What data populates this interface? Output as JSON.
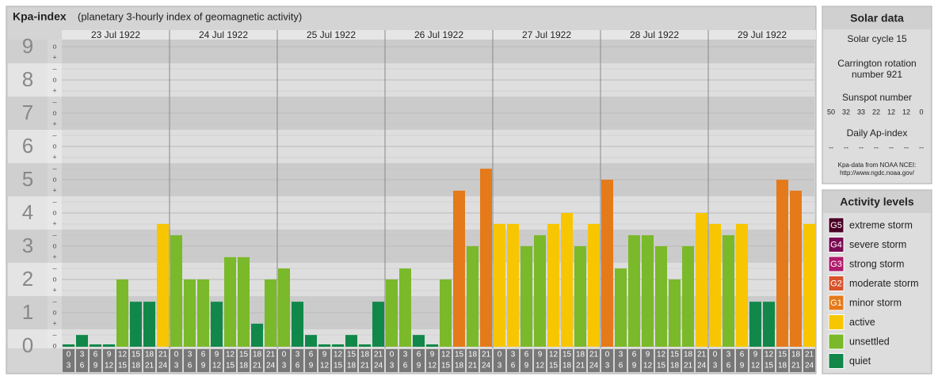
{
  "title": "Kpa-index",
  "subtitle": "(planetary 3-hourly index of geomagnetic activity)",
  "chart_data": {
    "type": "bar",
    "ylim": [
      0,
      9
    ],
    "yticks": [
      0,
      1,
      2,
      3,
      4,
      5,
      6,
      7,
      8,
      9
    ],
    "grid": true,
    "third_marks": [
      "–",
      "o",
      "+"
    ],
    "hours_from": [
      0,
      3,
      6,
      9,
      12,
      15,
      18,
      21
    ],
    "hours_to": [
      3,
      6,
      9,
      12,
      15,
      18,
      21,
      24
    ],
    "days": [
      {
        "date": "23 Jul 1922",
        "values": [
          0,
          0.33,
          0,
          0,
          2,
          1.33,
          1.33,
          3.67
        ],
        "colors": [
          "#11884a",
          "#11884a",
          "#11884a",
          "#11884a",
          "#7ab929",
          "#11884a",
          "#11884a",
          "#f7c600"
        ]
      },
      {
        "date": "24 Jul 1922",
        "values": [
          3.33,
          2,
          2,
          1.33,
          2.67,
          2.67,
          0.67,
          2
        ],
        "colors": [
          "#7ab929",
          "#7ab929",
          "#7ab929",
          "#11884a",
          "#7ab929",
          "#7ab929",
          "#11884a",
          "#7ab929"
        ]
      },
      {
        "date": "25 Jul 1922",
        "values": [
          2.33,
          1.33,
          0.33,
          0,
          0,
          0.33,
          0,
          1.33
        ],
        "colors": [
          "#7ab929",
          "#11884a",
          "#11884a",
          "#11884a",
          "#11884a",
          "#11884a",
          "#11884a",
          "#11884a"
        ]
      },
      {
        "date": "26 Jul 1922",
        "values": [
          2,
          2.33,
          0.33,
          0,
          2,
          4.67,
          3,
          5.33
        ],
        "colors": [
          "#7ab929",
          "#7ab929",
          "#11884a",
          "#11884a",
          "#7ab929",
          "#e57a1a",
          "#7ab929",
          "#e57a1a"
        ]
      },
      {
        "date": "27 Jul 1922",
        "values": [
          3.67,
          3.67,
          3,
          3.33,
          3.67,
          4,
          3,
          3.67
        ],
        "colors": [
          "#f7c600",
          "#f7c600",
          "#7ab929",
          "#7ab929",
          "#f7c600",
          "#f7c600",
          "#7ab929",
          "#f7c600"
        ]
      },
      {
        "date": "28 Jul 1922",
        "values": [
          5,
          2.33,
          3.33,
          3.33,
          3,
          2,
          3,
          4
        ],
        "colors": [
          "#e57a1a",
          "#7ab929",
          "#7ab929",
          "#7ab929",
          "#7ab929",
          "#7ab929",
          "#7ab929",
          "#f7c600"
        ]
      },
      {
        "date": "29 Jul 1922",
        "values": [
          3.67,
          3.33,
          3.67,
          1.33,
          1.33,
          5,
          4.67,
          3.67
        ],
        "colors": [
          "#f7c600",
          "#7ab929",
          "#f7c600",
          "#11884a",
          "#11884a",
          "#e57a1a",
          "#e57a1a",
          "#f7c600"
        ]
      }
    ]
  },
  "solar_data": {
    "title": "Solar data",
    "cycle": "Solar cycle 15",
    "carrington": [
      "Carrington rotation",
      "number 921"
    ],
    "sunspot_title": "Sunspot number",
    "sunspots": [
      50,
      32,
      33,
      22,
      12,
      12,
      0
    ],
    "ap_title": "Daily Ap-index",
    "ap": [
      "--",
      "--",
      "--",
      "--",
      "--",
      "--",
      "--"
    ],
    "source": [
      "Kpa-data from NOAA NCEI:",
      "http://www.ngdc.noaa.gov/"
    ]
  },
  "activity_levels": {
    "title": "Activity levels",
    "items": [
      {
        "code": "G5",
        "label": "extreme storm",
        "color": "#4a0026"
      },
      {
        "code": "G4",
        "label": "severe storm",
        "color": "#7a0b52"
      },
      {
        "code": "G3",
        "label": "strong storm",
        "color": "#b01b6b"
      },
      {
        "code": "G2",
        "label": "moderate storm",
        "color": "#d9532a"
      },
      {
        "code": "G1",
        "label": "minor storm",
        "color": "#e57a1a"
      },
      {
        "code": "",
        "label": "active",
        "color": "#f7c600"
      },
      {
        "code": "",
        "label": "unsettled",
        "color": "#7ab929"
      },
      {
        "code": "",
        "label": "quiet",
        "color": "#11884a"
      }
    ]
  }
}
